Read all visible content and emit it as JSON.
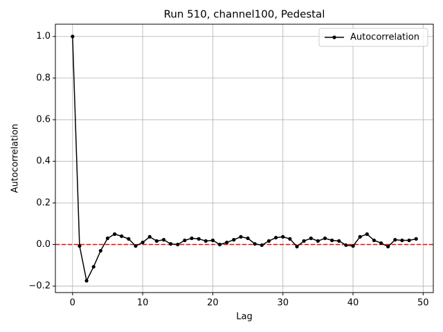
{
  "chart_data": {
    "type": "line",
    "title": "Run 510, channel100, Pedestal",
    "x_label": "Lag",
    "y_label": "Autocorrelation",
    "x": [
      0,
      1,
      2,
      3,
      4,
      5,
      6,
      7,
      8,
      9,
      10,
      11,
      12,
      13,
      14,
      15,
      16,
      17,
      18,
      19,
      20,
      21,
      22,
      23,
      24,
      25,
      26,
      27,
      28,
      29,
      30,
      31,
      32,
      33,
      34,
      35,
      36,
      37,
      38,
      39,
      40,
      41,
      42,
      43,
      44,
      45,
      46,
      47,
      48,
      49
    ],
    "series": [
      {
        "name": "Autocorrelation",
        "color": "#000000",
        "values": [
          1.0,
          -0.007,
          -0.174,
          -0.107,
          -0.03,
          0.03,
          0.05,
          0.04,
          0.027,
          -0.007,
          0.01,
          0.037,
          0.017,
          0.023,
          0.003,
          0.0,
          0.02,
          0.03,
          0.027,
          0.017,
          0.02,
          0.0,
          0.01,
          0.023,
          0.037,
          0.03,
          0.003,
          -0.003,
          0.017,
          0.033,
          0.037,
          0.027,
          -0.01,
          0.017,
          0.03,
          0.017,
          0.03,
          0.02,
          0.017,
          -0.003,
          -0.007,
          0.037,
          0.05,
          0.02,
          0.007,
          -0.01,
          0.023,
          0.02,
          0.02,
          0.027
        ]
      }
    ],
    "hline": {
      "value": 0,
      "color": "#ff0000"
    },
    "xlim": [
      -2.45,
      51.45
    ],
    "xticks": [
      0,
      10,
      20,
      30,
      40,
      50
    ],
    "ylim": [
      -0.231,
      1.059
    ],
    "yticks": [
      {
        "value": -0.2,
        "label": "−0.2"
      },
      {
        "value": 0,
        "label": "0.0"
      },
      0.2,
      0.4,
      0.6,
      0.8,
      {
        "value": 1.0,
        "label": "1.0"
      }
    ],
    "grid": true,
    "legend": "upper right"
  }
}
